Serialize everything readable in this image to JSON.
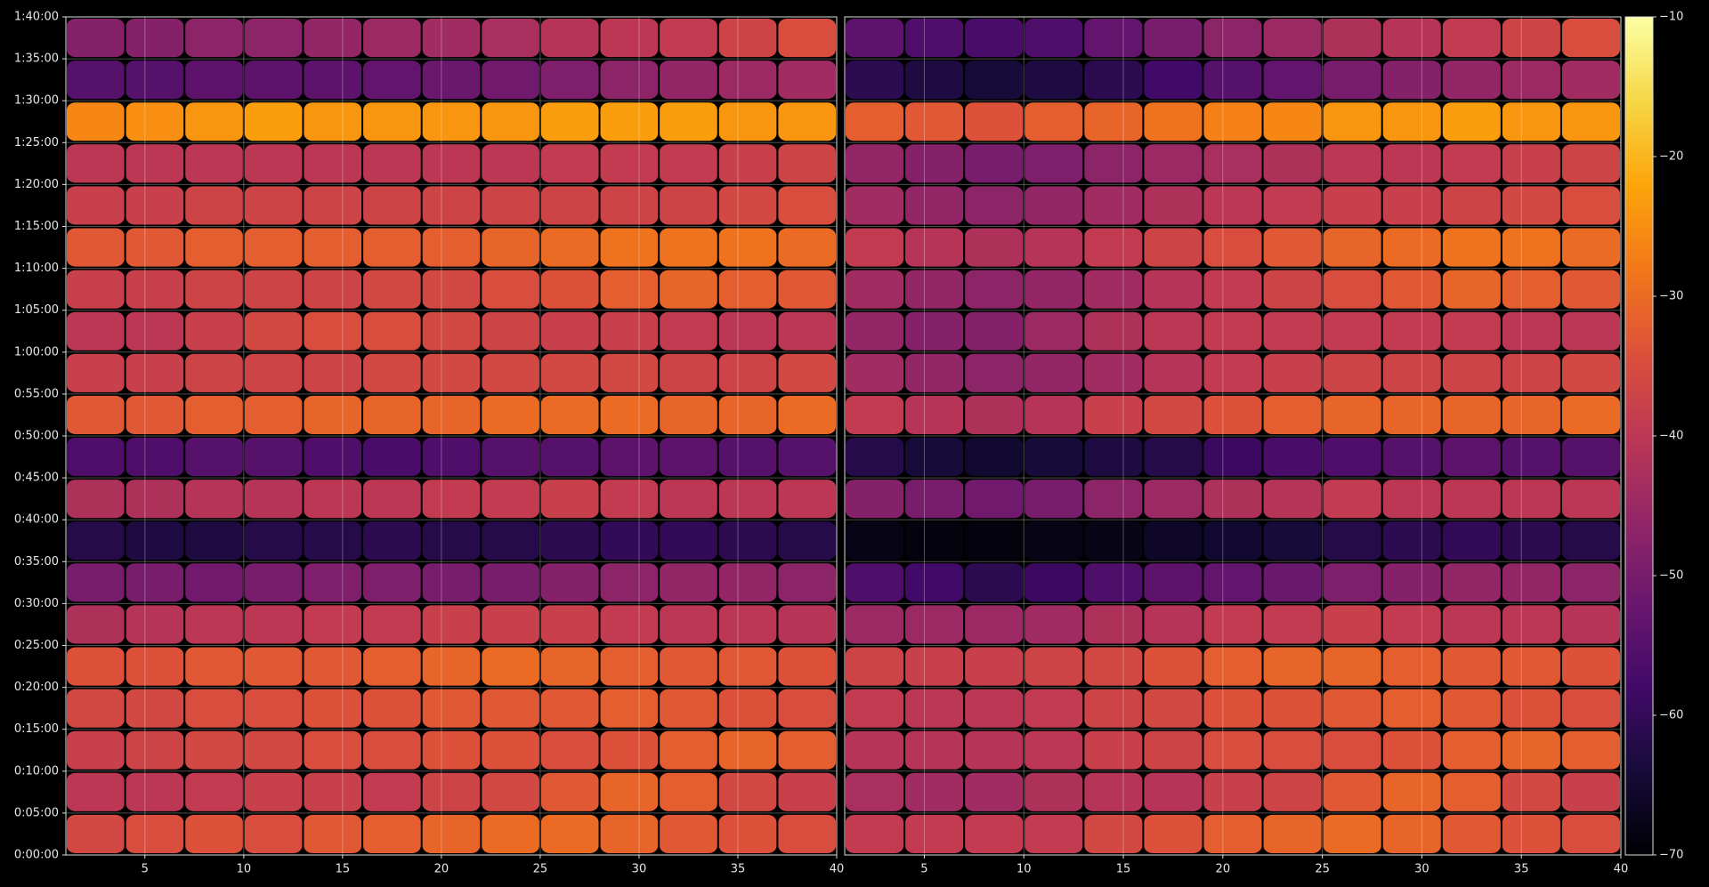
{
  "chart_data": [
    {
      "type": "heatmap",
      "x": [
        2.5,
        5.5,
        8.5,
        11.5,
        14.5,
        17.5,
        20.5,
        23.5,
        26.5,
        29.5,
        32.5,
        35.5,
        38.5
      ],
      "y": [
        2.5,
        7.5,
        12.5,
        17.5,
        22.5,
        27.5,
        32.5,
        37.5,
        42.5,
        47.5,
        52.5,
        57.5,
        62.5,
        67.5,
        72.5,
        77.5,
        82.5,
        87.5,
        92.5,
        97.5
      ],
      "values": [
        [
          -36,
          -35,
          -34,
          -35,
          -33,
          -32,
          -31,
          -30,
          -30,
          -31,
          -33,
          -34,
          -35
        ],
        [
          -40,
          -40,
          -39,
          -38,
          -38,
          -39,
          -37,
          -36,
          -33,
          -31,
          -32,
          -36,
          -38
        ],
        [
          -38,
          -37,
          -36,
          -36,
          -35,
          -35,
          -34,
          -34,
          -35,
          -34,
          -32,
          -31,
          -32
        ],
        [
          -36,
          -36,
          -35,
          -35,
          -34,
          -34,
          -33,
          -33,
          -33,
          -32,
          -33,
          -34,
          -35
        ],
        [
          -34,
          -34,
          -33,
          -33,
          -33,
          -32,
          -31,
          -30,
          -31,
          -32,
          -33,
          -33,
          -34
        ],
        [
          -42,
          -41,
          -40,
          -40,
          -39,
          -39,
          -38,
          -38,
          -38,
          -39,
          -40,
          -40,
          -41
        ],
        [
          -50,
          -50,
          -51,
          -50,
          -49,
          -49,
          -50,
          -50,
          -48,
          -47,
          -46,
          -46,
          -47
        ],
        [
          -62,
          -63,
          -63,
          -62,
          -62,
          -61,
          -62,
          -62,
          -61,
          -60,
          -60,
          -61,
          -62
        ],
        [
          -42,
          -42,
          -41,
          -41,
          -40,
          -40,
          -39,
          -39,
          -38,
          -39,
          -40,
          -40,
          -40
        ],
        [
          -56,
          -56,
          -55,
          -55,
          -56,
          -57,
          -56,
          -55,
          -55,
          -54,
          -54,
          -55,
          -55
        ],
        [
          -33,
          -33,
          -32,
          -32,
          -31,
          -31,
          -31,
          -30,
          -30,
          -30,
          -31,
          -31,
          -30
        ],
        [
          -38,
          -38,
          -37,
          -37,
          -37,
          -36,
          -36,
          -36,
          -36,
          -36,
          -37,
          -37,
          -36
        ],
        [
          -40,
          -40,
          -38,
          -36,
          -35,
          -35,
          -36,
          -37,
          -38,
          -38,
          -39,
          -40,
          -40
        ],
        [
          -38,
          -38,
          -37,
          -37,
          -37,
          -36,
          -36,
          -35,
          -34,
          -32,
          -31,
          -32,
          -33
        ],
        [
          -33,
          -33,
          -32,
          -32,
          -32,
          -32,
          -32,
          -31,
          -30,
          -29,
          -29,
          -29,
          -30
        ],
        [
          -38,
          -38,
          -37,
          -37,
          -37,
          -37,
          -37,
          -37,
          -37,
          -37,
          -37,
          -36,
          -35
        ],
        [
          -40,
          -40,
          -40,
          -40,
          -40,
          -40,
          -40,
          -40,
          -39,
          -39,
          -39,
          -38,
          -37
        ],
        [
          -26,
          -25,
          -24,
          -23,
          -24,
          -24,
          -24,
          -24,
          -23,
          -23,
          -23,
          -24,
          -24
        ],
        [
          -55,
          -55,
          -54,
          -54,
          -54,
          -53,
          -52,
          -51,
          -49,
          -47,
          -46,
          -45,
          -44
        ],
        [
          -48,
          -48,
          -47,
          -47,
          -46,
          -45,
          -44,
          -43,
          -41,
          -40,
          -39,
          -37,
          -35
        ]
      ],
      "xlim": [
        1,
        40
      ],
      "ylim": [
        0,
        100
      ],
      "xticks": [
        5,
        10,
        15,
        20,
        25,
        30,
        35,
        40
      ],
      "yticks": [
        {
          "value": 0,
          "label": "0:00:00"
        },
        {
          "value": 5,
          "label": "0:05:00"
        },
        {
          "value": 10,
          "label": "0:10:00"
        },
        {
          "value": 15,
          "label": "0:15:00"
        },
        {
          "value": 20,
          "label": "0:20:00"
        },
        {
          "value": 25,
          "label": "0:25:00"
        },
        {
          "value": 30,
          "label": "0:30:00"
        },
        {
          "value": 35,
          "label": "0:35:00"
        },
        {
          "value": 40,
          "label": "0:40:00"
        },
        {
          "value": 45,
          "label": "0:45:00"
        },
        {
          "value": 50,
          "label": "0:50:00"
        },
        {
          "value": 55,
          "label": "0:55:00"
        },
        {
          "value": 60,
          "label": "1:00:00"
        },
        {
          "value": 65,
          "label": "1:05:00"
        },
        {
          "value": 70,
          "label": "1:10:00"
        },
        {
          "value": 75,
          "label": "1:15:00"
        },
        {
          "value": 80,
          "label": "1:20:00"
        },
        {
          "value": 85,
          "label": "1:25:00"
        },
        {
          "value": 90,
          "label": "1:30:00"
        },
        {
          "value": 95,
          "label": "1:35:00"
        },
        {
          "value": 100,
          "label": "1:40:00"
        }
      ],
      "grid": true
    },
    {
      "type": "heatmap",
      "x": [
        2.5,
        5.5,
        8.5,
        11.5,
        14.5,
        17.5,
        20.5,
        23.5,
        26.5,
        29.5,
        32.5,
        35.5,
        38.5
      ],
      "y": [
        2.5,
        7.5,
        12.5,
        17.5,
        22.5,
        27.5,
        32.5,
        37.5,
        42.5,
        47.5,
        52.5,
        57.5,
        62.5,
        67.5,
        72.5,
        77.5,
        82.5,
        87.5,
        92.5,
        97.5
      ],
      "values": [
        [
          -39,
          -39,
          -39,
          -39,
          -36,
          -34,
          -32,
          -31,
          -30,
          -31,
          -33,
          -34,
          -35
        ],
        [
          -43,
          -44,
          -44,
          -42,
          -41,
          -41,
          -38,
          -37,
          -33,
          -31,
          -32,
          -36,
          -38
        ],
        [
          -41,
          -41,
          -41,
          -40,
          -38,
          -37,
          -35,
          -35,
          -35,
          -34,
          -32,
          -31,
          -32
        ],
        [
          -39,
          -40,
          -40,
          -39,
          -37,
          -36,
          -34,
          -34,
          -33,
          -32,
          -33,
          -34,
          -35
        ],
        [
          -37,
          -38,
          -38,
          -37,
          -36,
          -34,
          -32,
          -31,
          -31,
          -32,
          -33,
          -33,
          -34
        ],
        [
          -45,
          -45,
          -45,
          -44,
          -42,
          -41,
          -39,
          -39,
          -38,
          -39,
          -40,
          -40,
          -41
        ],
        [
          -56,
          -58,
          -61,
          -59,
          -56,
          -54,
          -53,
          -52,
          -49,
          -48,
          -46,
          -46,
          -47
        ],
        [
          -68,
          -69,
          -69,
          -68,
          -68,
          -66,
          -65,
          -64,
          -62,
          -61,
          -60,
          -61,
          -62
        ],
        [
          -48,
          -50,
          -51,
          -50,
          -47,
          -45,
          -42,
          -41,
          -39,
          -40,
          -40,
          -40,
          -40
        ],
        [
          -62,
          -64,
          -65,
          -64,
          -63,
          -62,
          -59,
          -57,
          -56,
          -55,
          -54,
          -55,
          -55
        ],
        [
          -39,
          -41,
          -42,
          -41,
          -38,
          -36,
          -34,
          -32,
          -31,
          -31,
          -31,
          -31,
          -30
        ],
        [
          -44,
          -46,
          -47,
          -46,
          -44,
          -41,
          -39,
          -38,
          -37,
          -37,
          -37,
          -37,
          -36
        ],
        [
          -46,
          -48,
          -48,
          -45,
          -42,
          -40,
          -39,
          -39,
          -39,
          -39,
          -39,
          -40,
          -40
        ],
        [
          -44,
          -46,
          -47,
          -46,
          -44,
          -41,
          -39,
          -37,
          -35,
          -33,
          -31,
          -32,
          -33
        ],
        [
          -39,
          -41,
          -42,
          -41,
          -39,
          -37,
          -35,
          -33,
          -31,
          -30,
          -29,
          -29,
          -30
        ],
        [
          -44,
          -46,
          -47,
          -46,
          -44,
          -42,
          -40,
          -39,
          -38,
          -38,
          -37,
          -36,
          -35
        ],
        [
          -46,
          -48,
          -50,
          -49,
          -47,
          -45,
          -43,
          -42,
          -40,
          -40,
          -39,
          -38,
          -37
        ],
        [
          -32,
          -33,
          -34,
          -32,
          -31,
          -29,
          -27,
          -26,
          -24,
          -24,
          -23,
          -24,
          -24
        ],
        [
          -61,
          -63,
          -64,
          -63,
          -61,
          -58,
          -55,
          -53,
          -50,
          -48,
          -46,
          -45,
          -44
        ],
        [
          -54,
          -56,
          -57,
          -56,
          -53,
          -50,
          -47,
          -45,
          -42,
          -41,
          -39,
          -37,
          -35
        ]
      ],
      "xlim": [
        1,
        40
      ],
      "ylim": [
        0,
        100
      ],
      "xticks": [
        5,
        10,
        15,
        20,
        25,
        30,
        35,
        40
      ],
      "grid": true
    }
  ],
  "colorbar": {
    "cmap": "inferno",
    "clim": [
      -70,
      -10
    ],
    "ticks": [
      {
        "value": -10,
        "label": "−10"
      },
      {
        "value": -20,
        "label": "−20"
      },
      {
        "value": -30,
        "label": "−30"
      },
      {
        "value": -40,
        "label": "−40"
      },
      {
        "value": -50,
        "label": "−50"
      },
      {
        "value": -60,
        "label": "−60"
      },
      {
        "value": -70,
        "label": "−70"
      }
    ]
  }
}
